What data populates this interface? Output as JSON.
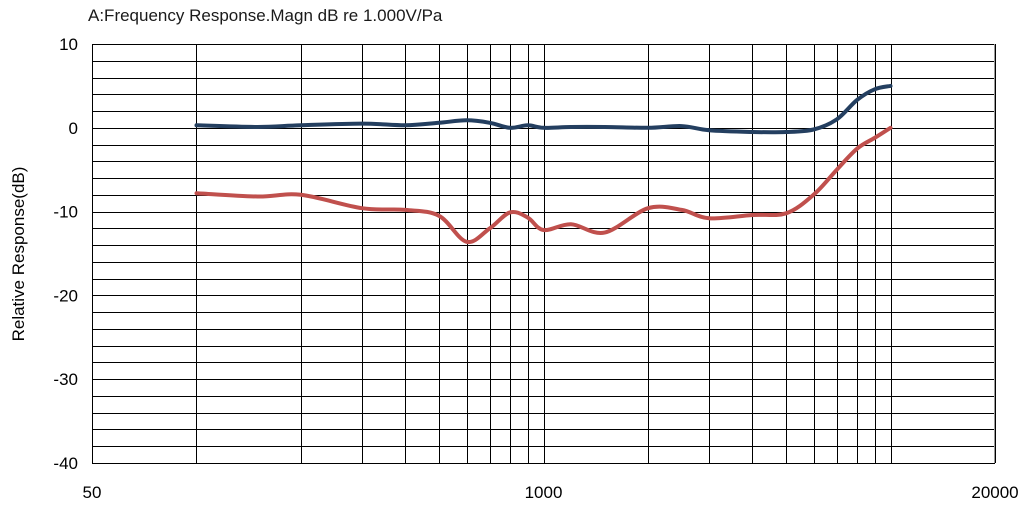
{
  "chart_data": {
    "type": "line",
    "title": "A:Frequency Response.Magn dB re 1.000V/Pa",
    "xlabel": "",
    "ylabel": "Relative Response(dB)",
    "x_scale": "log",
    "xlim": [
      50,
      20000
    ],
    "ylim": [
      -40,
      10
    ],
    "x_tick_labels": [
      "50",
      "1000",
      "20000"
    ],
    "x_tick_values": [
      50,
      1000,
      20000
    ],
    "y_tick_labels": [
      "10",
      "0",
      "-10",
      "-20",
      "-30",
      "-40"
    ],
    "y_tick_values": [
      10,
      0,
      -10,
      -20,
      -30,
      -40
    ],
    "grid": true,
    "series": [
      {
        "color": "#243f60",
        "x": [
          100,
          150,
          200,
          300,
          400,
          500,
          600,
          700,
          800,
          900,
          1000,
          1200,
          1500,
          2000,
          2500,
          3000,
          4000,
          5000,
          6000,
          7000,
          8000,
          9000,
          10000
        ],
        "y": [
          0.3,
          0.1,
          0.3,
          0.5,
          0.3,
          0.6,
          0.9,
          0.6,
          0.0,
          0.3,
          0.0,
          0.1,
          0.1,
          0.0,
          0.2,
          -0.3,
          -0.5,
          -0.5,
          -0.2,
          1.0,
          3.3,
          4.6,
          5.0
        ]
      },
      {
        "color": "#c0504d",
        "x": [
          100,
          150,
          200,
          300,
          400,
          500,
          600,
          700,
          800,
          900,
          1000,
          1200,
          1500,
          2000,
          2500,
          3000,
          4000,
          5000,
          6000,
          7000,
          8000,
          9000,
          10000
        ],
        "y": [
          -7.8,
          -8.2,
          -8.0,
          -9.6,
          -9.8,
          -10.5,
          -13.6,
          -12.0,
          -10.1,
          -10.7,
          -12.2,
          -11.5,
          -12.5,
          -9.6,
          -9.8,
          -10.8,
          -10.4,
          -10.2,
          -8.0,
          -5.0,
          -2.5,
          -1.2,
          0.0
        ]
      }
    ]
  }
}
